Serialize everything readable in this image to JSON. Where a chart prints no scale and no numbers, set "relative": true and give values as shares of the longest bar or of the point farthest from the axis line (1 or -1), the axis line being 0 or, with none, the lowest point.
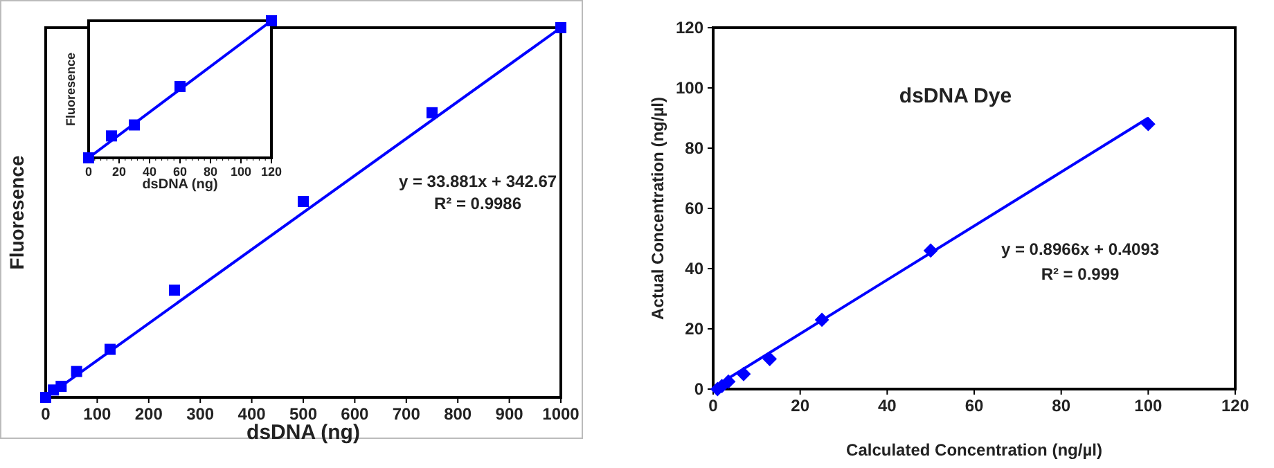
{
  "chart_data": [
    {
      "type": "scatter",
      "xlabel": "dsDNA (ng)",
      "ylabel": "Fluoresence",
      "relative": true,
      "xlim": [
        0,
        1000
      ],
      "xticks": [
        0,
        100,
        200,
        300,
        400,
        500,
        600,
        700,
        800,
        900,
        1000
      ],
      "grid": false,
      "annotations": [
        "y = 33.881x + 342.67",
        "R² = 0.9986"
      ],
      "series": [
        {
          "marker": "square",
          "color": "#0000ff",
          "x": [
            0,
            15,
            30,
            60,
            125,
            250,
            500,
            750,
            1000
          ],
          "values": [
            0,
            0.02,
            0.03,
            0.07,
            0.13,
            0.29,
            0.53,
            0.77,
            1
          ]
        },
        {
          "type": "line",
          "color": "#0000ff",
          "x": [
            0,
            1000
          ],
          "values": [
            0,
            1
          ]
        }
      ]
    },
    {
      "type": "scatter",
      "xlabel": "dsDNA (ng)",
      "ylabel": "Fluoresence",
      "relative": true,
      "xlim": [
        0,
        120
      ],
      "xticks": [
        0,
        20,
        40,
        60,
        80,
        100,
        120
      ],
      "grid": false,
      "series": [
        {
          "marker": "square",
          "color": "#0000ff",
          "x": [
            0,
            15,
            30,
            60,
            120
          ],
          "values": [
            0,
            0.16,
            0.24,
            0.52,
            1
          ]
        },
        {
          "type": "line",
          "color": "#0000ff",
          "x": [
            0,
            120
          ],
          "values": [
            0,
            1
          ]
        }
      ]
    },
    {
      "type": "scatter",
      "title": "dsDNA Dye",
      "xlabel": "Calculated Concentration (ng/µl)",
      "ylabel": "Actual Concentration (ng/µl)",
      "xlim": [
        0,
        120
      ],
      "xticks": [
        0,
        20,
        40,
        60,
        80,
        100,
        120
      ],
      "ylim": [
        0,
        120
      ],
      "yticks": [
        0,
        20,
        40,
        60,
        80,
        100,
        120
      ],
      "grid": false,
      "annotations": [
        "y = 0.8966x + 0.4093",
        "R² = 0.999"
      ],
      "series": [
        {
          "marker": "diamond",
          "color": "#0000ff",
          "x": [
            1,
            2,
            3.5,
            7,
            13,
            25,
            50,
            100
          ],
          "values": [
            0,
            1,
            2.5,
            5,
            10,
            23,
            46,
            88
          ]
        },
        {
          "type": "line",
          "color": "#0000ff",
          "x": [
            0.5,
            100
          ],
          "values": [
            0.9,
            90
          ]
        }
      ]
    }
  ]
}
